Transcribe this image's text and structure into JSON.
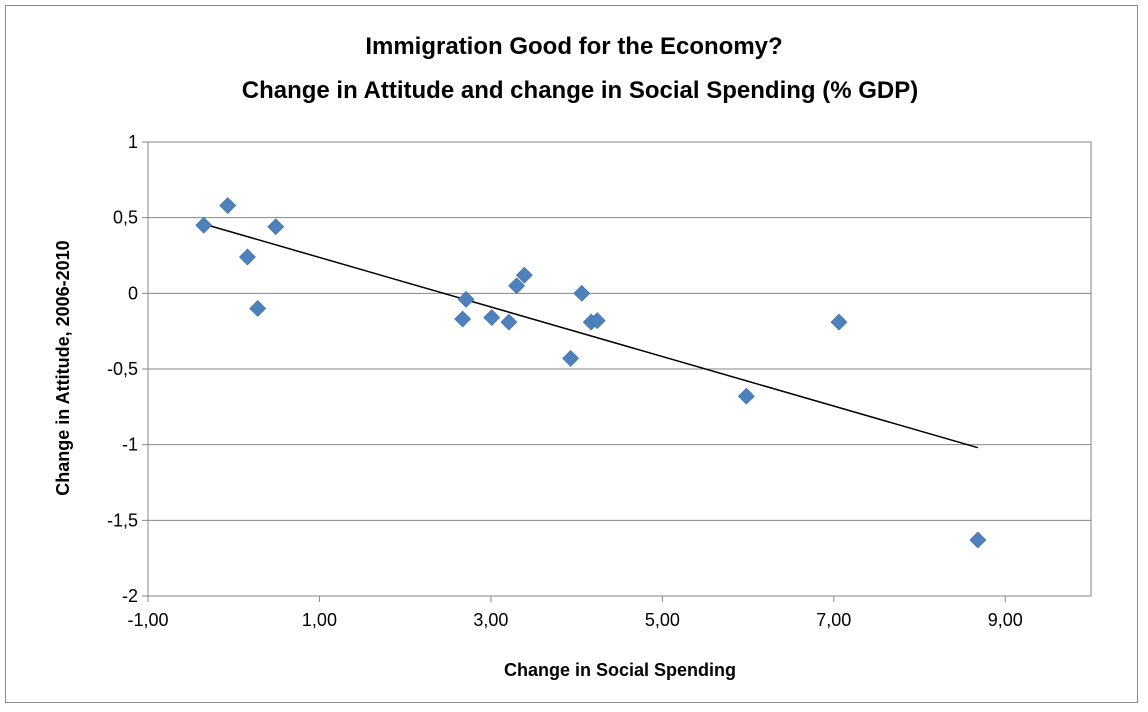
{
  "chart_data": {
    "type": "scatter",
    "title": "Immigration Good for the Economy?",
    "subtitle": "Change in Attitude and change in Social Spending (% GDP)",
    "xlabel": "Change in Social Spending",
    "ylabel": "Change in Attitude, 2006-2010",
    "xlim": [
      -1,
      10
    ],
    "ylim": [
      -2,
      1
    ],
    "x_ticks": [
      -1,
      1,
      3,
      5,
      7,
      9
    ],
    "x_tick_labels": [
      "-1,00",
      "1,00",
      "3,00",
      "5,00",
      "7,00",
      "9,00"
    ],
    "y_ticks": [
      1,
      0.5,
      0,
      -0.5,
      -1,
      -1.5,
      -2
    ],
    "y_tick_labels": [
      "1",
      "0,5",
      "0",
      "-0,5",
      "-1",
      "-1,5",
      "-2"
    ],
    "grid": "horizontal",
    "marker_color": "#4f81bd",
    "marker_shape": "diamond",
    "points": [
      {
        "x": -0.35,
        "y": 0.45
      },
      {
        "x": -0.07,
        "y": 0.58
      },
      {
        "x": 0.16,
        "y": 0.24
      },
      {
        "x": 0.28,
        "y": -0.1
      },
      {
        "x": 0.49,
        "y": 0.44
      },
      {
        "x": 2.67,
        "y": -0.17
      },
      {
        "x": 2.71,
        "y": -0.04
      },
      {
        "x": 3.01,
        "y": -0.16
      },
      {
        "x": 3.21,
        "y": -0.19
      },
      {
        "x": 3.3,
        "y": 0.05
      },
      {
        "x": 3.39,
        "y": 0.12
      },
      {
        "x": 3.93,
        "y": -0.43
      },
      {
        "x": 4.06,
        "y": 0.0
      },
      {
        "x": 4.17,
        "y": -0.19
      },
      {
        "x": 4.24,
        "y": -0.18
      },
      {
        "x": 5.98,
        "y": -0.68
      },
      {
        "x": 7.06,
        "y": -0.19
      },
      {
        "x": 8.68,
        "y": -1.63
      }
    ],
    "trendline": {
      "type": "linear",
      "color": "#000000",
      "x": [
        -0.3,
        8.68
      ],
      "y": [
        0.45,
        -1.02
      ]
    }
  }
}
